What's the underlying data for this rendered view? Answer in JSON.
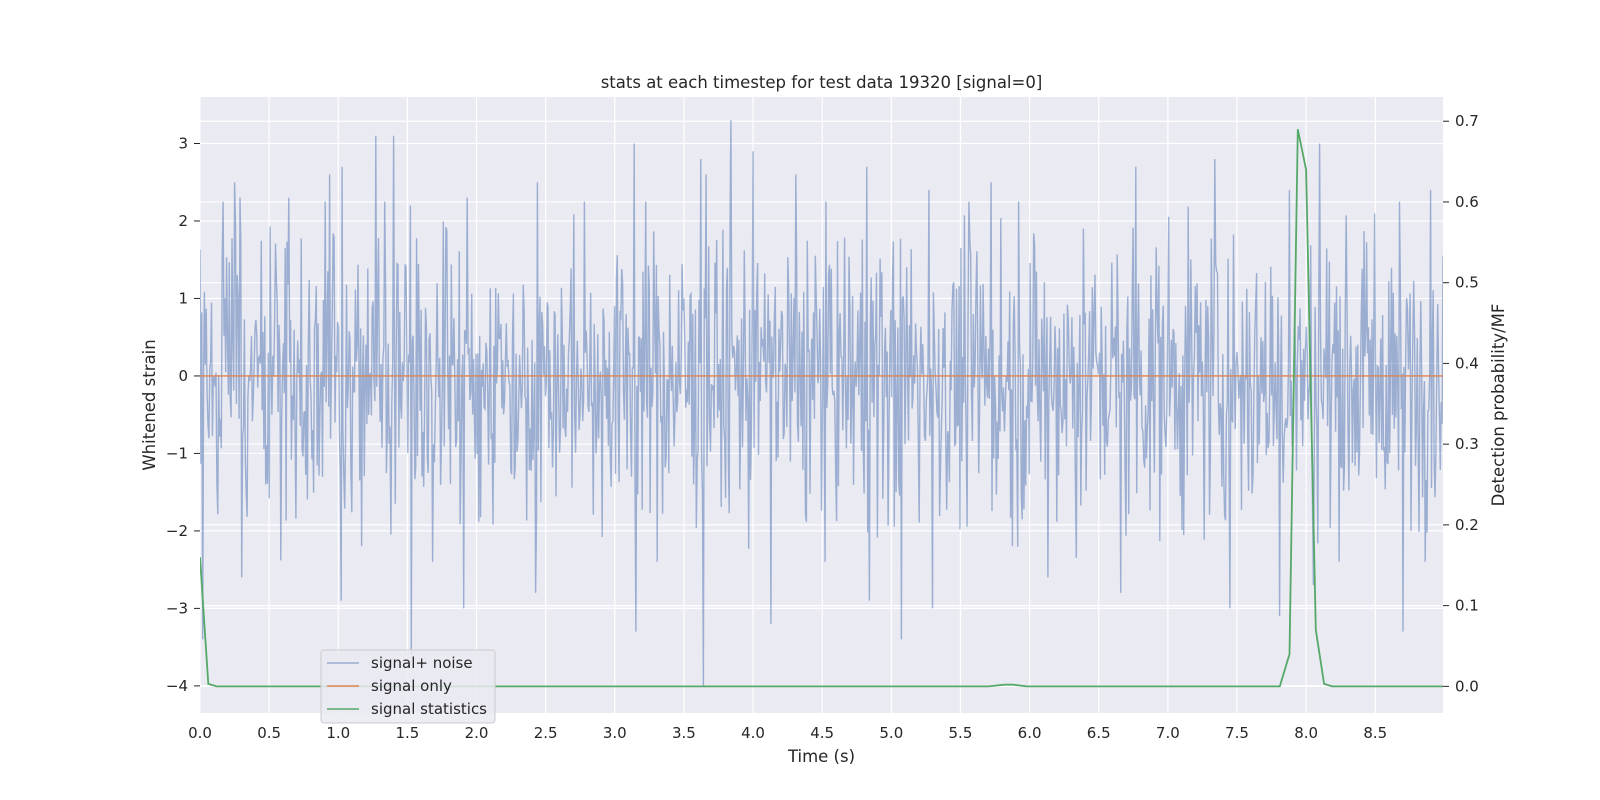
{
  "chart_data": {
    "type": "line",
    "title": "stats at each timestep for test data 19320 [signal=0]",
    "xlabel": "Time (s)",
    "ylabel_left": "Whitened strain",
    "ylabel_right": "Detection probability/MF",
    "xlim": [
      0.0,
      8.99
    ],
    "ylim_left": [
      -4.35,
      3.6
    ],
    "ylim_right": [
      -0.033,
      0.73
    ],
    "x_ticks": [
      0.0,
      0.5,
      1.0,
      1.5,
      2.0,
      2.5,
      3.0,
      3.5,
      4.0,
      4.5,
      5.0,
      5.5,
      6.0,
      6.5,
      7.0,
      7.5,
      8.0,
      8.5
    ],
    "x_tick_labels": [
      "0.0",
      "0.5",
      "1.0",
      "1.5",
      "2.0",
      "2.5",
      "3.0",
      "3.5",
      "4.0",
      "4.5",
      "5.0",
      "5.5",
      "6.0",
      "6.5",
      "7.0",
      "7.5",
      "8.0",
      "8.5"
    ],
    "y_left_ticks": [
      -4,
      -3,
      -2,
      -1,
      0,
      1,
      2,
      3
    ],
    "y_left_tick_labels": [
      "−4",
      "−3",
      "−2",
      "−1",
      "0",
      "1",
      "2",
      "3"
    ],
    "y_right_ticks": [
      0.0,
      0.1,
      0.2,
      0.3,
      0.4,
      0.5,
      0.6,
      0.7
    ],
    "y_right_tick_labels": [
      "0.0",
      "0.1",
      "0.2",
      "0.3",
      "0.4",
      "0.5",
      "0.6",
      "0.7"
    ],
    "grid": true,
    "legend": {
      "position": "lower-left"
    },
    "series": [
      {
        "name": "signal+ noise",
        "axis": "left",
        "color": "#4c72b0",
        "alpha": 0.5,
        "style": "dense whitened-noise trace, approx. ±1.2 body, peaks up to 3.3 and down to -4.0",
        "envelope_peaks": {
          "x": [
            0.02,
            0.25,
            0.29,
            0.64,
            0.94,
            1.03,
            1.27,
            1.4,
            1.52,
            1.93,
            2.44,
            3.14,
            3.62,
            3.66,
            3.84,
            4.0,
            4.31,
            4.82,
            5.27,
            5.72,
            6.77,
            7.34,
            7.88,
            8.1,
            8.9
          ],
          "y": [
            2.05,
            2.5,
            2.3,
            2.3,
            2.6,
            2.7,
            3.1,
            3.1,
            2.2,
            2.3,
            2.5,
            3.0,
            2.8,
            2.6,
            3.3,
            2.9,
            2.6,
            2.7,
            2.4,
            2.5,
            2.7,
            2.8,
            2.4,
            3.0,
            2.4
          ]
        },
        "envelope_troughs": {
          "x": [
            0.02,
            0.3,
            1.02,
            1.53,
            1.91,
            2.43,
            3.15,
            3.64,
            4.13,
            4.84,
            5.07,
            5.3,
            6.13,
            6.66,
            7.45,
            7.81,
            8.05,
            8.7
          ],
          "y": [
            -3.4,
            -2.6,
            -2.9,
            -3.6,
            -3.0,
            -2.8,
            -3.3,
            -4.0,
            -3.2,
            -2.9,
            -3.4,
            -3.0,
            -2.6,
            -2.8,
            -3.0,
            -3.1,
            -2.7,
            -3.3
          ]
        }
      },
      {
        "name": "signal only",
        "axis": "left",
        "color": "#dd8452",
        "x": [
          0.0,
          8.99
        ],
        "y": [
          0.0,
          0.0
        ]
      },
      {
        "name": "signal statistics",
        "axis": "right",
        "color": "#55a868",
        "x": [
          0.0,
          0.06,
          0.12,
          0.5,
          1.0,
          2.0,
          3.0,
          4.0,
          5.0,
          5.7,
          5.82,
          5.88,
          5.98,
          6.5,
          7.0,
          7.5,
          7.81,
          7.88,
          7.94,
          8.0,
          8.07,
          8.13,
          8.19,
          8.5,
          8.99
        ],
        "y": [
          0.16,
          0.003,
          0.0,
          0.0,
          0.0,
          0.0,
          0.0,
          0.0,
          0.0,
          0.0,
          0.002,
          0.002,
          0.0,
          0.0,
          0.0,
          0.0,
          0.0,
          0.04,
          0.69,
          0.64,
          0.07,
          0.003,
          0.0,
          0.0,
          0.0
        ]
      }
    ]
  }
}
